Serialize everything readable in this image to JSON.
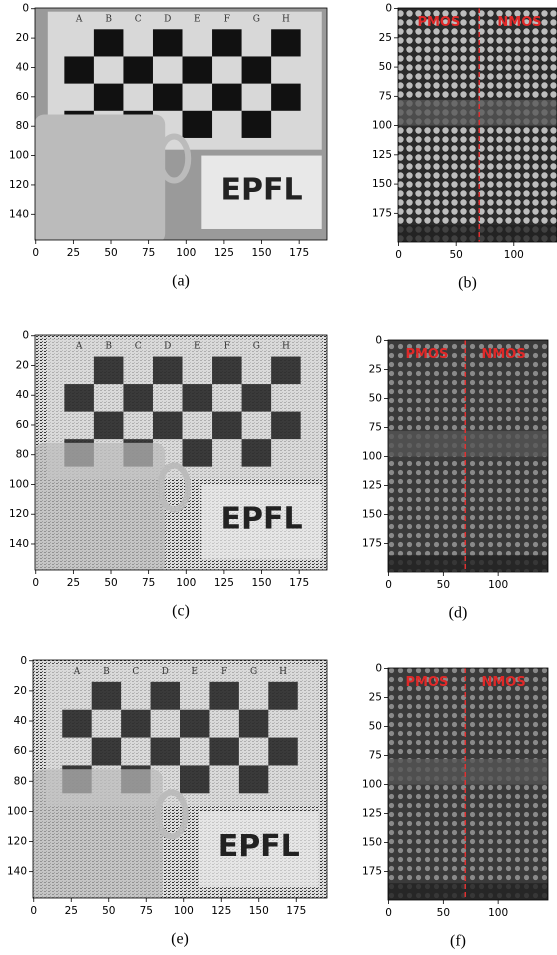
{
  "panels": [
    {
      "caption": "(a)",
      "kind": "scene",
      "xlim": [
        -0.5,
        193.5
      ],
      "ylim": [
        157.5,
        -0.5
      ],
      "xticks": [
        0,
        25,
        50,
        75,
        100,
        125,
        150,
        175
      ],
      "yticks": [
        0,
        20,
        40,
        60,
        80,
        100,
        120,
        140
      ],
      "board_letters": [
        "A",
        "B",
        "C",
        "D",
        "E",
        "F",
        "G",
        "H"
      ],
      "sign": "EPFL"
    },
    {
      "caption": "(b)",
      "kind": "chip",
      "xlim": [
        -0.5,
        137.5
      ],
      "ylim": [
        199.5,
        -0.5
      ],
      "xticks": [
        0,
        50,
        100
      ],
      "yticks": [
        0,
        25,
        50,
        75,
        100,
        125,
        150,
        175
      ],
      "divider_x": 70,
      "left_label": "PMOS",
      "right_label": "NMOS"
    },
    {
      "caption": "(c)",
      "kind": "scene",
      "xlim": [
        -0.5,
        193.5
      ],
      "ylim": [
        157.5,
        -0.5
      ],
      "xticks": [
        0,
        25,
        50,
        75,
        100,
        125,
        150,
        175
      ],
      "yticks": [
        0,
        20,
        40,
        60,
        80,
        100,
        120,
        140
      ],
      "board_letters": [
        "A",
        "B",
        "C",
        "D",
        "E",
        "F",
        "G",
        "H"
      ],
      "sign": "EPFL"
    },
    {
      "caption": "(d)",
      "kind": "chip",
      "xlim": [
        -0.5,
        145.5
      ],
      "ylim": [
        199.5,
        -0.5
      ],
      "xticks": [
        0,
        50,
        100
      ],
      "yticks": [
        0,
        25,
        50,
        75,
        100,
        125,
        150,
        175
      ],
      "divider_x": 70,
      "left_label": "PMOS",
      "right_label": "NMOS"
    },
    {
      "caption": "(e)",
      "kind": "scene",
      "xlim": [
        -0.5,
        195.5
      ],
      "ylim": [
        157.5,
        -0.5
      ],
      "xticks": [
        0,
        25,
        50,
        75,
        100,
        125,
        150,
        175
      ],
      "yticks": [
        0,
        20,
        40,
        60,
        80,
        100,
        120,
        140
      ],
      "board_letters": [
        "A",
        "B",
        "C",
        "D",
        "E",
        "F",
        "G",
        "H"
      ],
      "sign": "EPFL"
    },
    {
      "caption": "(f)",
      "kind": "chip",
      "xlim": [
        -0.5,
        145.5
      ],
      "ylim": [
        199.5,
        -0.5
      ],
      "xticks": [
        0,
        50,
        100
      ],
      "yticks": [
        0,
        25,
        50,
        75,
        100,
        125,
        150,
        175
      ],
      "divider_x": 70,
      "left_label": "PMOS",
      "right_label": "NMOS"
    }
  ]
}
